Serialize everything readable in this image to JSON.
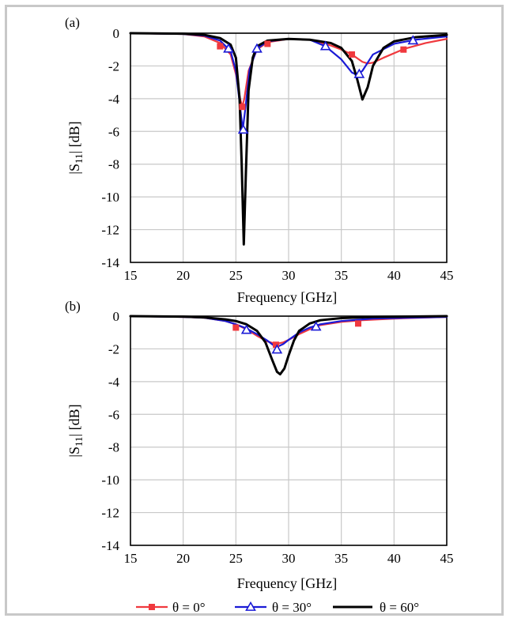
{
  "colors": {
    "theta0": "#f0393e",
    "theta30": "#1a1ad6",
    "theta60": "#000000",
    "grid": "#c8c8c8",
    "border": "#c8c8c8"
  },
  "legend": [
    {
      "key": "theta0",
      "label": "θ = 0°",
      "marker": "square"
    },
    {
      "key": "theta30",
      "label": "θ = 30°",
      "marker": "triangle"
    },
    {
      "key": "theta60",
      "label": "θ = 60°",
      "marker": "none"
    }
  ],
  "chart_data": [
    {
      "type": "line",
      "panel_label": "(a)",
      "xlabel": "Frequency [GHz]",
      "ylabel": "|S11| [dB]",
      "xlim": [
        15,
        45
      ],
      "ylim": [
        -14,
        0
      ],
      "xticks": [
        15,
        20,
        25,
        30,
        35,
        40,
        45
      ],
      "yticks": [
        0,
        -2,
        -4,
        -6,
        -8,
        -10,
        -12,
        -14
      ],
      "grid": true,
      "series": [
        {
          "key": "theta0",
          "name": "θ = 0°",
          "x": [
            15,
            20,
            22,
            23.5,
            24.5,
            25,
            25.4,
            25.6,
            25.8,
            26.2,
            27,
            28,
            30,
            32,
            34,
            35,
            36,
            37,
            37.5,
            38,
            39,
            41,
            43,
            45
          ],
          "y": [
            0,
            -0.05,
            -0.2,
            -0.6,
            -1.3,
            -2.5,
            -4.0,
            -4.5,
            -4.0,
            -2.3,
            -1.0,
            -0.55,
            -0.35,
            -0.4,
            -0.75,
            -1.0,
            -1.3,
            -1.75,
            -1.85,
            -1.8,
            -1.5,
            -0.95,
            -0.6,
            -0.35
          ],
          "markers_x": [
            23.5,
            25.6,
            28,
            36,
            40.9
          ],
          "markers_y": [
            -0.8,
            -4.5,
            -0.65,
            -1.3,
            -1.0
          ]
        },
        {
          "key": "theta30",
          "name": "θ = 30°",
          "x": [
            15,
            20,
            22,
            23.5,
            24.5,
            25,
            25.4,
            25.65,
            25.9,
            26.3,
            27,
            28,
            30,
            32,
            33.5,
            35,
            36,
            36.5,
            37,
            38,
            40,
            42,
            45
          ],
          "y": [
            0,
            -0.05,
            -0.15,
            -0.45,
            -1.1,
            -2.3,
            -4.5,
            -5.9,
            -4.6,
            -2.2,
            -0.95,
            -0.5,
            -0.35,
            -0.4,
            -0.8,
            -1.6,
            -2.4,
            -2.55,
            -2.3,
            -1.3,
            -0.65,
            -0.4,
            -0.2
          ],
          "markers_x": [
            24.3,
            25.7,
            27.0,
            33.5,
            36.7,
            41.8
          ],
          "markers_y": [
            -0.95,
            -5.9,
            -0.95,
            -0.8,
            -2.5,
            -0.45
          ]
        },
        {
          "key": "theta60",
          "name": "θ = 60°",
          "x": [
            15,
            20,
            22,
            23.5,
            24.5,
            25,
            25.35,
            25.55,
            25.75,
            25.95,
            26.2,
            26.6,
            27,
            28,
            30,
            32,
            34,
            35,
            36,
            36.5,
            37,
            37.5,
            38,
            39,
            40,
            42,
            45
          ],
          "y": [
            0,
            -0.03,
            -0.1,
            -0.3,
            -0.7,
            -1.5,
            -4.0,
            -8.0,
            -12.9,
            -8.5,
            -3.5,
            -1.5,
            -0.8,
            -0.45,
            -0.35,
            -0.4,
            -0.6,
            -0.9,
            -1.7,
            -2.8,
            -4.05,
            -3.3,
            -2.0,
            -0.9,
            -0.5,
            -0.25,
            -0.1
          ],
          "markers_x": [],
          "markers_y": []
        }
      ]
    },
    {
      "type": "line",
      "panel_label": "(b)",
      "xlabel": "Frequency [GHz]",
      "ylabel": "|S11| [dB]",
      "xlim": [
        15,
        45
      ],
      "ylim": [
        -14,
        0
      ],
      "xticks": [
        15,
        20,
        25,
        30,
        35,
        40,
        45
      ],
      "yticks": [
        0,
        -2,
        -4,
        -6,
        -8,
        -10,
        -12,
        -14
      ],
      "grid": true,
      "series": [
        {
          "key": "theta0",
          "name": "θ = 0°",
          "x": [
            15,
            20,
            22,
            24,
            25,
            26,
            27,
            28,
            28.8,
            29.5,
            30,
            31,
            32,
            33,
            35,
            37,
            40,
            45
          ],
          "y": [
            0,
            -0.05,
            -0.1,
            -0.3,
            -0.5,
            -0.8,
            -1.2,
            -1.55,
            -1.7,
            -1.6,
            -1.45,
            -1.1,
            -0.8,
            -0.55,
            -0.35,
            -0.25,
            -0.15,
            -0.05
          ],
          "markers_x": [
            25.0,
            28.8,
            36.6
          ],
          "markers_y": [
            -0.7,
            -1.75,
            -0.45
          ]
        },
        {
          "key": "theta30",
          "name": "θ = 30°",
          "x": [
            15,
            20,
            22,
            24,
            25,
            26,
            27,
            28,
            28.6,
            29,
            29.5,
            30,
            31,
            32,
            33,
            35,
            38,
            45
          ],
          "y": [
            0,
            -0.05,
            -0.1,
            -0.3,
            -0.5,
            -0.75,
            -1.1,
            -1.5,
            -1.8,
            -1.85,
            -1.7,
            -1.45,
            -1.0,
            -0.7,
            -0.5,
            -0.3,
            -0.15,
            -0.05
          ],
          "markers_x": [
            26.0,
            28.9,
            32.6
          ],
          "markers_y": [
            -0.85,
            -2.05,
            -0.65
          ]
        },
        {
          "key": "theta60",
          "name": "θ = 60°",
          "x": [
            15,
            20,
            22,
            24,
            25,
            26,
            27,
            27.8,
            28.4,
            28.9,
            29.2,
            29.6,
            30,
            30.5,
            31,
            32,
            33,
            35,
            38,
            45
          ],
          "y": [
            0,
            -0.03,
            -0.08,
            -0.2,
            -0.3,
            -0.5,
            -0.9,
            -1.6,
            -2.6,
            -3.4,
            -3.55,
            -3.2,
            -2.4,
            -1.5,
            -0.9,
            -0.45,
            -0.25,
            -0.12,
            -0.05,
            0
          ],
          "markers_x": [],
          "markers_y": []
        }
      ]
    }
  ]
}
